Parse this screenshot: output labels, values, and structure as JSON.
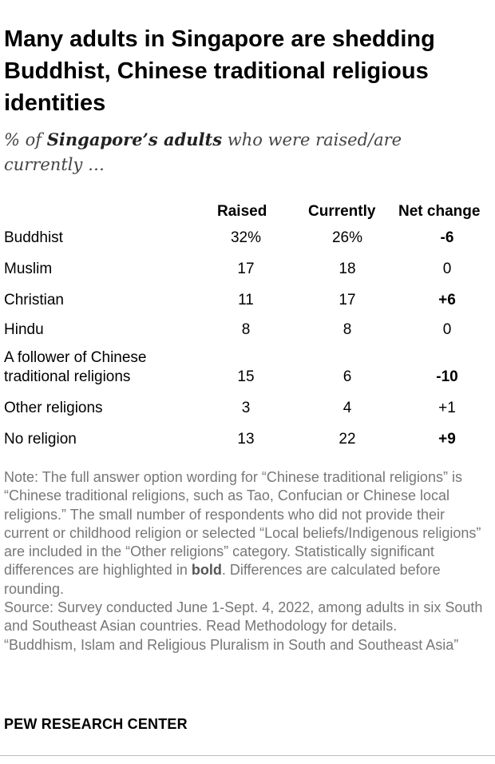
{
  "title": "Many adults in Singapore are shedding Buddhist, Chinese traditional religious identities",
  "subtitle": {
    "pre": "% of ",
    "bold": "Singapore’s adults",
    "post": " who were raised/are currently …"
  },
  "chart_data": {
    "type": "table",
    "columns": [
      "Raised",
      "Currently",
      "Net change"
    ],
    "rows": [
      {
        "label": "Buddhist",
        "raised": "32%",
        "currently": "26%",
        "net_change": "-6",
        "significant": true
      },
      {
        "label": "Muslim",
        "raised": "17",
        "currently": "18",
        "net_change": "0",
        "significant": false
      },
      {
        "label": "Christian",
        "raised": "11",
        "currently": "17",
        "net_change": "+6",
        "significant": true
      },
      {
        "label": "Hindu",
        "raised": "8",
        "currently": "8",
        "net_change": "0",
        "significant": false
      },
      {
        "label": "A follower of Chinese traditional religions",
        "raised": "15",
        "currently": "6",
        "net_change": "-10",
        "significant": true
      },
      {
        "label": "Other religions",
        "raised": "3",
        "currently": "4",
        "net_change": "+1",
        "significant": false
      },
      {
        "label": "No religion",
        "raised": "13",
        "currently": "22",
        "net_change": "+9",
        "significant": true
      }
    ]
  },
  "note": {
    "part1": "Note: The full answer option wording for “Chinese traditional religions” is “Chinese traditional religions, such as Tao, Confucian or Chinese local religions.” The small number of respondents who did not provide their current or childhood religion or selected “Local beliefs/Indigenous religions” are included in the “Other religions” category. Statistically significant differences are highlighted in ",
    "bold_word": "bold",
    "part2": ". Differences are calculated before rounding.",
    "source": "Source: Survey conducted June 1-Sept. 4, 2022, among adults in six South and Southeast Asian countries. Read Methodology for details.",
    "report": "“Buddhism, Islam and Religious Pluralism in South and Southeast Asia”"
  },
  "brand": "PEW RESEARCH CENTER"
}
